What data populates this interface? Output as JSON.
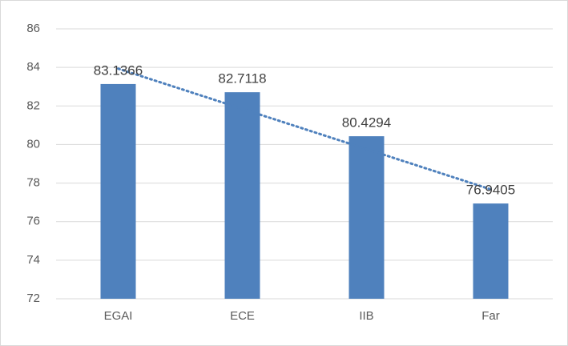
{
  "chart_data": {
    "type": "bar",
    "categories": [
      "EGAI",
      "ECE",
      "IIB",
      "Far"
    ],
    "values": [
      83.1366,
      82.7118,
      80.4294,
      76.9405
    ],
    "color": "#4f81bd",
    "ylim": [
      72,
      86
    ],
    "yticks": [
      72,
      74,
      76,
      78,
      80,
      82,
      84,
      86
    ],
    "grid": true,
    "data_labels": true,
    "trendline": "linear"
  }
}
